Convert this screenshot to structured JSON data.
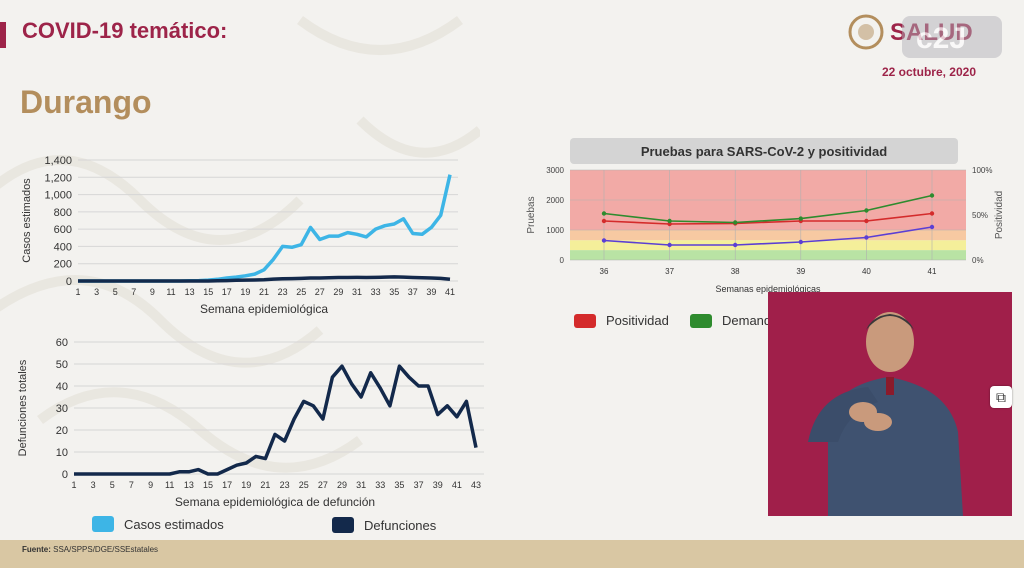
{
  "header": {
    "title": "COVID-19 temático:",
    "state": "Durango",
    "date": "22 octubre, 2020",
    "logo_text": "SALUD"
  },
  "footer": {
    "source_label": "Fuente:",
    "source_text": "SSA/SPPS/DGE/SSEstatales"
  },
  "legend": {
    "cases": "Casos estimados",
    "deaths": "Defunciones"
  },
  "positivity_legend": {
    "positivity": "Positividad",
    "demand": "Demanda"
  },
  "colors": {
    "cases": "#3db5e6",
    "deaths": "#13294b",
    "positivity": "#d42b2b",
    "demand": "#2e8b2e",
    "tests": "#5b3fd4",
    "brand": "#9d2449",
    "gold": "#b38e5d"
  },
  "chart_data": [
    {
      "type": "line",
      "ylabel": "Casos estimados",
      "xlabel": "Semana epidemiológica",
      "ylim": [
        0,
        1400
      ],
      "yticks": [
        "0",
        "200",
        "400",
        "600",
        "800",
        "1,000",
        "1,200",
        "1,400"
      ],
      "xticks": [
        "1",
        "3",
        "5",
        "7",
        "9",
        "11",
        "13",
        "15",
        "17",
        "19",
        "21",
        "23",
        "25",
        "27",
        "29",
        "31",
        "33",
        "35",
        "37",
        "39",
        "41"
      ],
      "x": [
        1,
        2,
        3,
        4,
        5,
        6,
        7,
        8,
        9,
        10,
        11,
        12,
        13,
        14,
        15,
        16,
        17,
        18,
        19,
        20,
        21,
        22,
        23,
        24,
        25,
        26,
        27,
        28,
        29,
        30,
        31,
        32,
        33,
        34,
        35,
        36,
        37,
        38,
        39,
        40,
        41
      ],
      "series": [
        {
          "name": "Casos estimados",
          "values": [
            0,
            0,
            0,
            0,
            0,
            0,
            0,
            0,
            0,
            0,
            0,
            0,
            2,
            5,
            10,
            20,
            35,
            45,
            60,
            80,
            130,
            250,
            400,
            390,
            420,
            620,
            480,
            520,
            520,
            560,
            540,
            510,
            600,
            640,
            660,
            720,
            550,
            540,
            620,
            760,
            1230
          ]
        },
        {
          "name": "Defunciones",
          "values": [
            0,
            0,
            0,
            0,
            0,
            0,
            0,
            0,
            0,
            0,
            0,
            0,
            0,
            0,
            0,
            2,
            5,
            8,
            10,
            12,
            15,
            22,
            25,
            28,
            30,
            35,
            35,
            38,
            40,
            40,
            42,
            40,
            42,
            45,
            48,
            45,
            40,
            38,
            35,
            30,
            20
          ]
        }
      ],
      "grid": true
    },
    {
      "type": "line",
      "ylabel": "Defunciones totales",
      "xlabel": "Semana epidemiológica de defunción",
      "ylim": [
        0,
        60
      ],
      "yticks": [
        "0",
        "10",
        "20",
        "30",
        "40",
        "50",
        "60"
      ],
      "xticks": [
        "1",
        "3",
        "5",
        "7",
        "9",
        "11",
        "13",
        "15",
        "17",
        "19",
        "21",
        "23",
        "25",
        "27",
        "29",
        "31",
        "33",
        "35",
        "37",
        "39",
        "41",
        "43"
      ],
      "x": [
        1,
        2,
        3,
        4,
        5,
        6,
        7,
        8,
        9,
        10,
        11,
        12,
        13,
        14,
        15,
        16,
        17,
        18,
        19,
        20,
        21,
        22,
        23,
        24,
        25,
        26,
        27,
        28,
        29,
        30,
        31,
        32,
        33,
        34,
        35,
        36,
        37,
        38,
        39,
        40,
        41,
        42,
        43
      ],
      "series": [
        {
          "name": "Defunciones",
          "values": [
            0,
            0,
            0,
            0,
            0,
            0,
            0,
            0,
            0,
            0,
            0,
            1,
            1,
            2,
            0,
            0,
            2,
            4,
            5,
            8,
            7,
            18,
            15,
            25,
            33,
            31,
            25,
            44,
            49,
            41,
            35,
            46,
            39,
            31,
            49,
            44,
            40,
            40,
            27,
            31,
            26,
            33,
            12
          ]
        }
      ],
      "grid": true
    },
    {
      "type": "line",
      "title": "Pruebas para SARS-CoV-2 y positividad",
      "ylabel": "Pruebas",
      "y2label": "Positividad",
      "xlabel": "Semanas epidemiológicas",
      "ylim": [
        0,
        3000
      ],
      "y2lim": [
        0,
        100
      ],
      "yticks": [
        "0",
        "1000",
        "2000",
        "3000"
      ],
      "y2ticks": [
        "0%",
        "50%",
        "100%"
      ],
      "categories": [
        "36",
        "37",
        "38",
        "39",
        "40",
        "41"
      ],
      "series": [
        {
          "name": "Positividad",
          "axis": "left",
          "values": [
            1300,
            1200,
            1220,
            1300,
            1300,
            1550
          ]
        },
        {
          "name": "Demanda",
          "axis": "left",
          "values": [
            1550,
            1300,
            1250,
            1380,
            1650,
            2150
          ]
        },
        {
          "name": "Pruebas",
          "axis": "left",
          "values": [
            650,
            500,
            500,
            600,
            750,
            1100
          ]
        }
      ],
      "bands": [
        {
          "from": 0,
          "to": 330,
          "color": "#b9e3a4"
        },
        {
          "from": 330,
          "to": 660,
          "color": "#f4ef9a"
        },
        {
          "from": 660,
          "to": 1000,
          "color": "#f7c9a2"
        },
        {
          "from": 1000,
          "to": 3000,
          "color": "#f2aaa6"
        }
      ],
      "grid": true
    }
  ]
}
